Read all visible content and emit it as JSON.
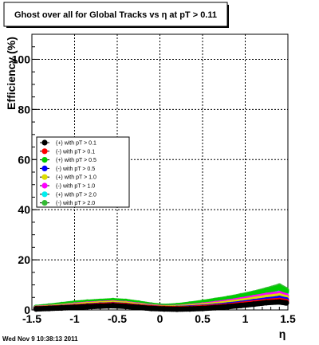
{
  "chart_data": {
    "type": "scatter",
    "title": "Ghost over all for Global Tracks vs η at pT > 0.11",
    "xlabel": "η",
    "ylabel": "Efficiency (%)",
    "xlim": [
      -1.5,
      1.5
    ],
    "ylim": [
      0,
      110
    ],
    "x_ticks": [
      "-1.5",
      "-1",
      "-0.5",
      "0",
      "0.5",
      "1",
      "1.5"
    ],
    "y_ticks": [
      "0",
      "20",
      "40",
      "60",
      "80",
      "100"
    ],
    "grid": true,
    "legend_position": "left-middle",
    "series": [
      {
        "name": "(+) with pT > 0.1",
        "color": "#000000",
        "x": [
          -1.45,
          -1.3,
          -1.15,
          -1.0,
          -0.85,
          -0.7,
          -0.55,
          -0.4,
          -0.25,
          -0.1,
          0.05,
          0.2,
          0.35,
          0.5,
          0.65,
          0.8,
          0.95,
          1.1,
          1.25,
          1.4,
          1.48
        ],
        "y": [
          0.4,
          0.6,
          0.8,
          1.0,
          1.3,
          1.5,
          1.7,
          1.4,
          1.0,
          0.6,
          0.4,
          0.3,
          0.4,
          0.6,
          0.9,
          1.3,
          1.8,
          2.3,
          2.9,
          3.2,
          2.8
        ]
      },
      {
        "name": "(-) with pT > 0.1",
        "color": "#ff0000",
        "x": [
          -1.45,
          -1.3,
          -1.15,
          -1.0,
          -0.85,
          -0.7,
          -0.55,
          -0.4,
          -0.25,
          -0.1,
          0.05,
          0.2,
          0.35,
          0.5,
          0.65,
          0.8,
          0.95,
          1.1,
          1.25,
          1.4,
          1.48
        ],
        "y": [
          0.5,
          0.7,
          0.9,
          1.2,
          1.5,
          1.8,
          2.0,
          1.7,
          1.2,
          0.8,
          0.6,
          0.5,
          0.6,
          0.9,
          1.2,
          1.6,
          2.2,
          2.8,
          3.4,
          3.8,
          3.3
        ]
      },
      {
        "name": "(+) with pT > 0.5",
        "color": "#00cc00",
        "x": [
          -1.45,
          -1.3,
          -1.15,
          -1.0,
          -0.85,
          -0.7,
          -0.55,
          -0.4,
          -0.25,
          -0.1,
          0.05,
          0.2,
          0.35,
          0.5,
          0.65,
          0.8,
          0.95,
          1.1,
          1.25,
          1.4,
          1.48
        ],
        "y": [
          0.9,
          1.4,
          2.0,
          2.6,
          3.0,
          3.3,
          3.6,
          3.3,
          2.6,
          1.8,
          1.3,
          1.6,
          2.2,
          2.9,
          3.6,
          4.4,
          5.3,
          6.4,
          7.6,
          8.9,
          7.5
        ]
      },
      {
        "name": "(-) with pT > 0.5",
        "color": "#0000ff",
        "x": [
          -1.45,
          -1.3,
          -1.15,
          -1.0,
          -0.85,
          -0.7,
          -0.55,
          -0.4,
          -0.25,
          -0.1,
          0.05,
          0.2,
          0.35,
          0.5,
          0.65,
          0.8,
          0.95,
          1.1,
          1.25,
          1.4,
          1.48
        ],
        "y": [
          0.5,
          0.7,
          1.0,
          1.3,
          1.6,
          1.9,
          2.1,
          1.8,
          1.3,
          0.9,
          0.6,
          0.6,
          0.8,
          1.1,
          1.5,
          2.0,
          2.6,
          3.3,
          4.0,
          4.6,
          4.0
        ]
      },
      {
        "name": "(+) with pT > 1.0",
        "color": "#dddd00",
        "x": [
          -1.45,
          -1.3,
          -1.15,
          -1.0,
          -0.85,
          -0.7,
          -0.55,
          -0.4,
          -0.25,
          -0.1,
          0.05,
          0.2,
          0.35,
          0.5,
          0.65,
          0.8,
          0.95,
          1.1,
          1.25,
          1.4,
          1.48
        ],
        "y": [
          0.6,
          0.9,
          1.3,
          1.7,
          2.1,
          2.4,
          2.6,
          2.3,
          1.7,
          1.1,
          0.8,
          0.9,
          1.2,
          1.6,
          2.1,
          2.7,
          3.4,
          4.2,
          5.0,
          5.6,
          4.8
        ]
      },
      {
        "name": "(-) with pT > 1.0",
        "color": "#ff00ff",
        "x": [
          -1.45,
          -1.3,
          -1.15,
          -1.0,
          -0.85,
          -0.7,
          -0.55,
          -0.4,
          -0.25,
          -0.1,
          0.05,
          0.2,
          0.35,
          0.5,
          0.65,
          0.8,
          0.95,
          1.1,
          1.25,
          1.4,
          1.48
        ],
        "y": [
          0.7,
          1.0,
          1.4,
          1.9,
          2.3,
          2.6,
          2.8,
          2.5,
          1.9,
          1.3,
          0.9,
          1.0,
          1.4,
          1.9,
          2.5,
          3.2,
          4.0,
          4.9,
          5.8,
          6.5,
          5.6
        ]
      },
      {
        "name": "(+) with pT > 2.0",
        "color": "#00eeee",
        "x": [
          -1.45,
          -1.3,
          -1.15,
          -1.0,
          -0.85,
          -0.7,
          -0.55,
          -0.4,
          -0.25,
          -0.1,
          0.05,
          0.2,
          0.35,
          0.5,
          0.65,
          0.8,
          0.95,
          1.1,
          1.25,
          1.4,
          1.48
        ],
        "y": [
          0.9,
          1.3,
          1.9,
          2.5,
          2.9,
          3.2,
          3.4,
          3.1,
          2.4,
          1.7,
          1.2,
          1.5,
          2.1,
          2.8,
          3.5,
          4.2,
          5.2,
          6.3,
          7.3,
          8.2,
          7.0
        ]
      },
      {
        "name": "(-) with pT > 2.0",
        "color": "#33bb33",
        "x": [
          -1.45,
          -1.3,
          -1.15,
          -1.0,
          -0.85,
          -0.7,
          -0.55,
          -0.4,
          -0.25,
          -0.1,
          0.05,
          0.2,
          0.35,
          0.5,
          0.65,
          0.8,
          0.95,
          1.1,
          1.25,
          1.4,
          1.48
        ],
        "y": [
          1.0,
          1.5,
          2.1,
          2.7,
          3.1,
          3.4,
          3.7,
          3.4,
          2.7,
          1.9,
          1.4,
          1.7,
          2.3,
          3.0,
          3.8,
          4.6,
          5.6,
          6.7,
          8.0,
          9.5,
          8.0
        ]
      }
    ]
  },
  "timestamp": "Wed Nov  9 10:38:13 2011"
}
